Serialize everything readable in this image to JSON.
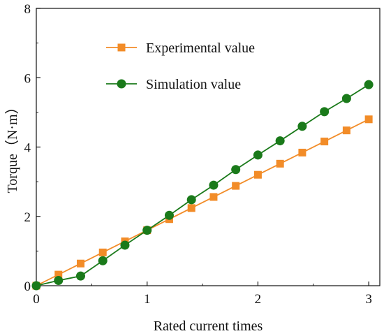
{
  "chart_data": {
    "type": "line",
    "xlabel": "Rated current times",
    "ylabel": "Torque（N·m）",
    "xlim": [
      0,
      3.1
    ],
    "ylim": [
      0,
      8
    ],
    "x_ticks": [
      "0",
      "1",
      "2",
      "3"
    ],
    "y_ticks": [
      "0",
      "2",
      "4",
      "6",
      "8"
    ],
    "legend_position": "top-left",
    "grid": false,
    "x": [
      0,
      0.2,
      0.4,
      0.6,
      0.8,
      1.0,
      1.2,
      1.4,
      1.6,
      1.8,
      2.0,
      2.2,
      2.4,
      2.6,
      2.8,
      3.0
    ],
    "series": [
      {
        "name": "Experimental value",
        "color": "#f28c28",
        "marker": "square",
        "values": [
          0,
          0.32,
          0.64,
          0.96,
          1.28,
          1.6,
          1.92,
          2.24,
          2.56,
          2.88,
          3.2,
          3.52,
          3.84,
          4.16,
          4.48,
          4.8
        ]
      },
      {
        "name": "Simulation value",
        "color": "#1a7a1a",
        "marker": "circle",
        "values": [
          0,
          0.15,
          0.28,
          0.72,
          1.17,
          1.6,
          2.03,
          2.48,
          2.9,
          3.35,
          3.77,
          4.18,
          4.6,
          5.02,
          5.4,
          5.8
        ]
      }
    ]
  }
}
